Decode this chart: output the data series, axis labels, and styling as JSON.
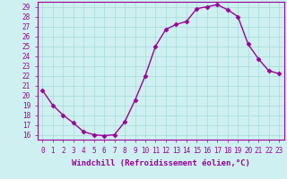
{
  "x": [
    0,
    1,
    2,
    3,
    4,
    5,
    6,
    7,
    8,
    9,
    10,
    11,
    12,
    13,
    14,
    15,
    16,
    17,
    18,
    19,
    20,
    21,
    22,
    23
  ],
  "y": [
    20.5,
    19.0,
    18.0,
    17.2,
    16.3,
    16.0,
    15.9,
    16.0,
    17.3,
    19.5,
    22.0,
    25.0,
    26.7,
    27.2,
    27.5,
    28.8,
    29.0,
    29.2,
    28.7,
    28.0,
    25.2,
    23.7,
    22.5,
    22.2
  ],
  "line_color": "#990099",
  "marker": "D",
  "markersize": 2.5,
  "linewidth": 1.0,
  "xlabel": "Windchill (Refroidissement éolien,°C)",
  "xlim": [
    -0.5,
    23.5
  ],
  "ylim": [
    15.5,
    29.5
  ],
  "yticks": [
    16,
    17,
    18,
    19,
    20,
    21,
    22,
    23,
    24,
    25,
    26,
    27,
    28,
    29
  ],
  "xticks": [
    0,
    1,
    2,
    3,
    4,
    5,
    6,
    7,
    8,
    9,
    10,
    11,
    12,
    13,
    14,
    15,
    16,
    17,
    18,
    19,
    20,
    21,
    22,
    23
  ],
  "bg_color": "#cff0f0",
  "grid_color": "#aadddd",
  "tick_color": "#990099",
  "label_color": "#990099",
  "xlabel_fontsize": 6.5,
  "tick_fontsize": 5.5,
  "spine_color": "#990099"
}
